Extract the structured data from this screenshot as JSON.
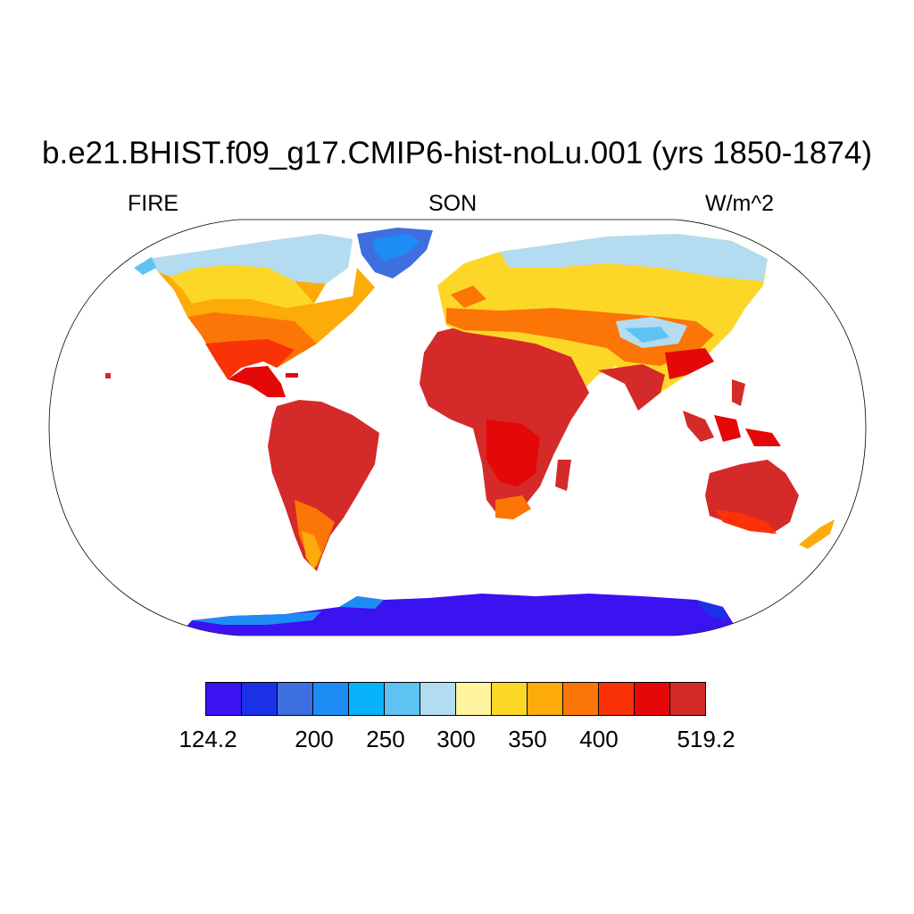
{
  "title": "b.e21.BHIST.f09_g17.CMIP6-hist-noLu.001 (yrs 1850-1874)",
  "left_label": "FIRE",
  "center_label": "SON",
  "right_label": "W/m^2",
  "colorbar": {
    "colors": [
      "#3b12f0",
      "#1b31e8",
      "#3e6fe0",
      "#1e8cf5",
      "#08b2f8",
      "#5ec3f2",
      "#b4dcf0",
      "#fff5a0",
      "#fdd728",
      "#fcab08",
      "#fb7606",
      "#f93208",
      "#e40808",
      "#d42a2a"
    ],
    "tick_labels": [
      "124.2",
      "200",
      "250",
      "300",
      "350",
      "400",
      "519.2"
    ],
    "min": "124.2",
    "max": "519.2"
  },
  "chart_data": {
    "type": "heatmap",
    "title": "b.e21.BHIST.f09_g17.CMIP6-hist-noLu.001 (yrs 1850-1874)",
    "variable": "FIRE",
    "season": "SON",
    "units": "W/m^2",
    "projection": "Robinson",
    "range": [
      124.2,
      519.2
    ],
    "contour_levels": [
      124.2,
      175,
      200,
      225,
      250,
      275,
      300,
      325,
      350,
      375,
      400,
      425,
      450,
      519.2
    ],
    "ocean": "white (masked)",
    "regions": [
      {
        "region": "Antarctica",
        "approx_value": 150
      },
      {
        "region": "Greenland",
        "approx_value": 230
      },
      {
        "region": "Arctic Canada / Siberia coast",
        "approx_value": 290
      },
      {
        "region": "Northern Eurasia / Canada",
        "approx_value": 330
      },
      {
        "region": "Tibetan Plateau",
        "approx_value": 300
      },
      {
        "region": "Central Eurasia / USA",
        "approx_value": 380
      },
      {
        "region": "Mexico / Mediterranean / China",
        "approx_value": 430
      },
      {
        "region": "Sahara / Arabia / India",
        "approx_value": 480
      },
      {
        "region": "Amazon / Central Africa / Australia",
        "approx_value": 460
      },
      {
        "region": "Patagonia / New Zealand",
        "approx_value": 340
      }
    ]
  }
}
